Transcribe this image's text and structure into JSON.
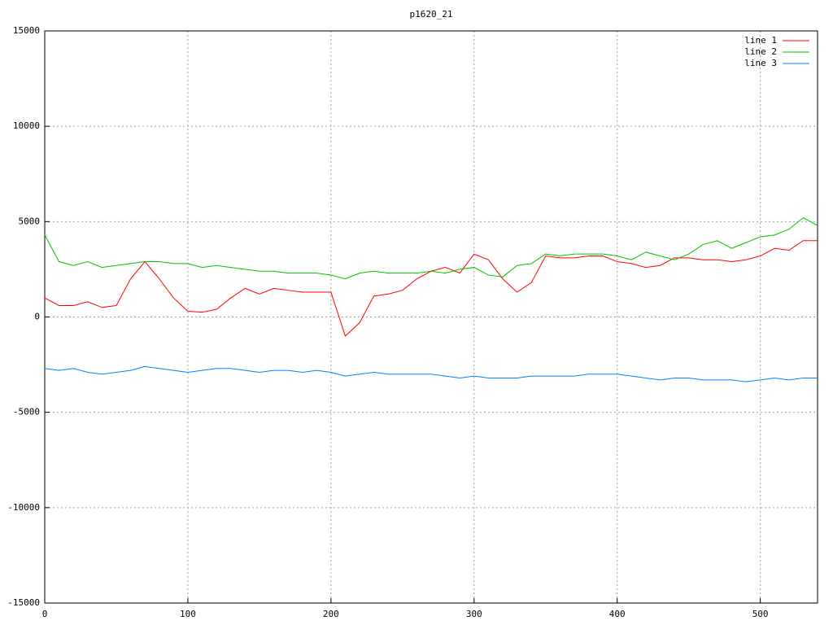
{
  "chart_data": {
    "type": "line",
    "title": "p1620_21",
    "x": [
      0,
      10,
      20,
      30,
      40,
      50,
      60,
      70,
      80,
      90,
      100,
      110,
      120,
      130,
      140,
      150,
      160,
      170,
      180,
      190,
      200,
      210,
      220,
      230,
      240,
      250,
      260,
      270,
      280,
      290,
      300,
      310,
      320,
      330,
      340,
      350,
      360,
      370,
      380,
      390,
      400,
      410,
      420,
      430,
      440,
      450,
      460,
      470,
      480,
      490,
      500,
      510,
      520,
      530,
      540
    ],
    "series": [
      {
        "name": "line 1",
        "color": "#ff0000",
        "values": [
          1000,
          600,
          600,
          800,
          500,
          600,
          2000,
          2900,
          2000,
          1000,
          300,
          250,
          400,
          1000,
          1500,
          1200,
          1500,
          1400,
          1300,
          1300,
          1300,
          -1000,
          -300,
          1100,
          1200,
          1400,
          2000,
          2400,
          2600,
          2300,
          3300,
          3000,
          2000,
          1300,
          1800,
          3200,
          3100,
          3100,
          3200,
          3200,
          2900,
          2800,
          2600,
          2700,
          3100,
          3100,
          3000,
          3000,
          2900,
          3000,
          3200,
          3600,
          3500,
          4000,
          4000
        ]
      },
      {
        "name": "line 2",
        "color": "#00c000",
        "values": [
          4300,
          2900,
          2700,
          2900,
          2600,
          2700,
          2800,
          2900,
          2900,
          2800,
          2800,
          2600,
          2700,
          2600,
          2500,
          2400,
          2400,
          2300,
          2300,
          2300,
          2200,
          2000,
          2300,
          2400,
          2300,
          2300,
          2300,
          2400,
          2300,
          2500,
          2600,
          2200,
          2100,
          2700,
          2800,
          3300,
          3200,
          3300,
          3300,
          3300,
          3200,
          3000,
          3400,
          3200,
          3000,
          3300,
          3800,
          4000,
          3600,
          3900,
          4200,
          4300,
          4600,
          5200,
          4800
        ]
      },
      {
        "name": "line 3",
        "color": "#0080ff",
        "values": [
          -2700,
          -2800,
          -2700,
          -2900,
          -3000,
          -2900,
          -2800,
          -2600,
          -2700,
          -2800,
          -2900,
          -2800,
          -2700,
          -2700,
          -2800,
          -2900,
          -2800,
          -2800,
          -2900,
          -2800,
          -2900,
          -3100,
          -3000,
          -2900,
          -3000,
          -3000,
          -3000,
          -3000,
          -3100,
          -3200,
          -3100,
          -3200,
          -3200,
          -3200,
          -3100,
          -3100,
          -3100,
          -3100,
          -3000,
          -3000,
          -3000,
          -3100,
          -3200,
          -3300,
          -3200,
          -3200,
          -3300,
          -3300,
          -3300,
          -3400,
          -3300,
          -3200,
          -3300,
          -3200,
          -3200
        ]
      }
    ],
    "xlim": [
      0,
      540
    ],
    "xticks": [
      0,
      100,
      200,
      300,
      400,
      500
    ],
    "ylim": [
      -15000,
      15000
    ],
    "yticks": [
      -15000,
      -10000,
      -5000,
      0,
      5000,
      10000,
      15000
    ],
    "grid": true,
    "legend": "top-right"
  }
}
